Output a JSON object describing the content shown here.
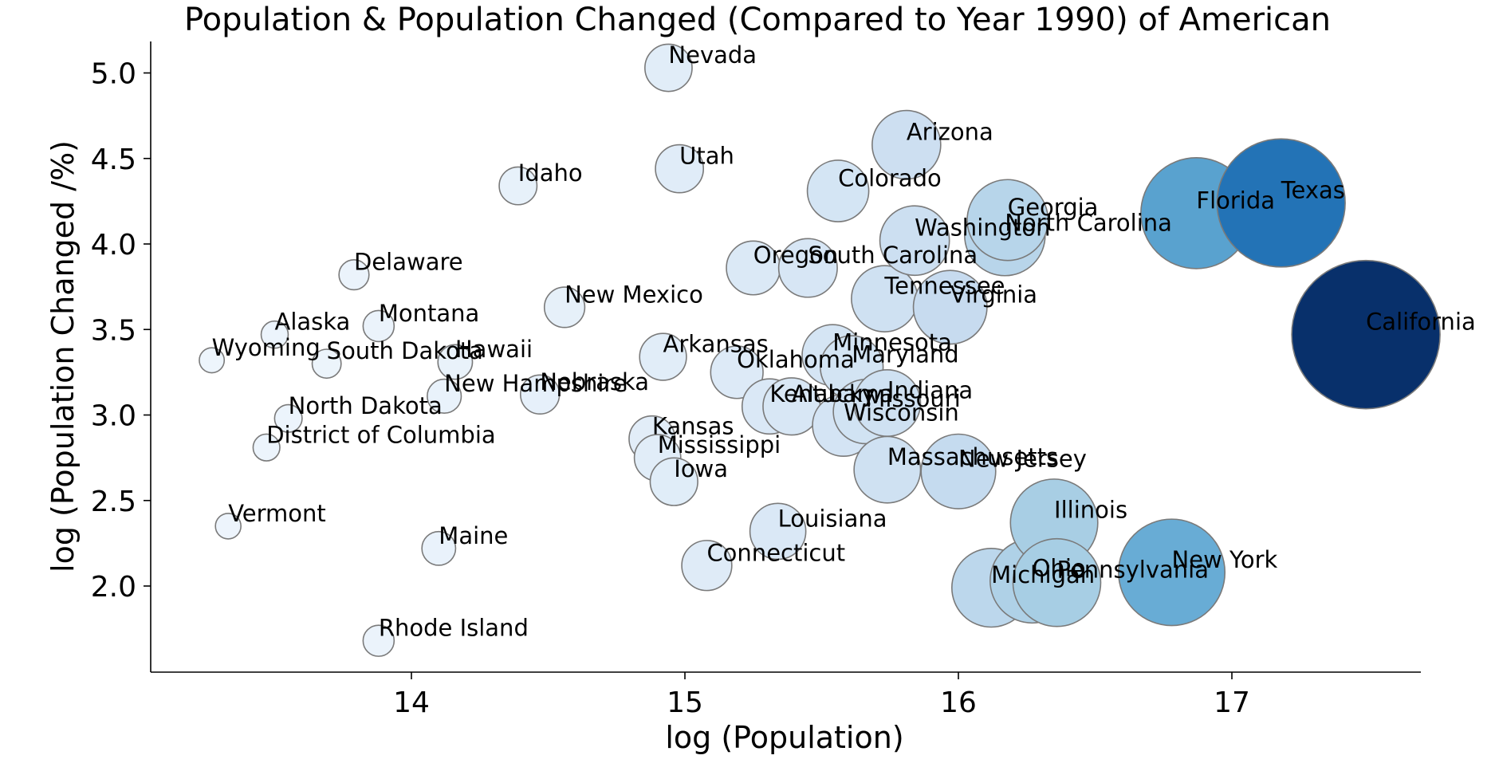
{
  "chart_data": {
    "type": "scatter",
    "title": "Population & Population Changed (Compared to Year 1990) of American",
    "xlabel": "log (Population)",
    "ylabel": "log (Population Changed /%)",
    "xlim": [
      13.05,
      17.7
    ],
    "ylim": [
      1.5,
      5.2
    ],
    "xticks": [
      14,
      15,
      16,
      17
    ],
    "yticks": [
      2.0,
      2.5,
      3.0,
      3.5,
      4.0,
      4.5,
      5.0
    ],
    "ytick_labels": [
      "2.0",
      "2.5",
      "3.0",
      "3.5",
      "4.0",
      "4.5",
      "5.0"
    ],
    "grid": false,
    "legend": "none",
    "color_scale": "Blues",
    "points": [
      {
        "label": "Nevada",
        "x": 14.94,
        "y": 5.03
      },
      {
        "label": "Arizona",
        "x": 15.81,
        "y": 4.58
      },
      {
        "label": "Utah",
        "x": 14.98,
        "y": 4.44
      },
      {
        "label": "Idaho",
        "x": 14.39,
        "y": 4.34
      },
      {
        "label": "Colorado",
        "x": 15.56,
        "y": 4.31
      },
      {
        "label": "Texas",
        "x": 17.18,
        "y": 4.24
      },
      {
        "label": "Florida",
        "x": 16.87,
        "y": 4.18
      },
      {
        "label": "Georgia",
        "x": 16.18,
        "y": 4.14
      },
      {
        "label": "North Carolina",
        "x": 16.17,
        "y": 4.05
      },
      {
        "label": "Washington",
        "x": 15.84,
        "y": 4.02
      },
      {
        "label": "Oregon",
        "x": 15.25,
        "y": 3.86
      },
      {
        "label": "South Carolina",
        "x": 15.45,
        "y": 3.86
      },
      {
        "label": "Delaware",
        "x": 13.79,
        "y": 3.82
      },
      {
        "label": "Tennessee",
        "x": 15.73,
        "y": 3.68
      },
      {
        "label": "New Mexico",
        "x": 14.56,
        "y": 3.63
      },
      {
        "label": "Virginia",
        "x": 15.97,
        "y": 3.63
      },
      {
        "label": "Montana",
        "x": 13.88,
        "y": 3.52
      },
      {
        "label": "Alaska",
        "x": 13.5,
        "y": 3.47
      },
      {
        "label": "California",
        "x": 17.49,
        "y": 3.47
      },
      {
        "label": "Minnesota",
        "x": 15.54,
        "y": 3.35
      },
      {
        "label": "Arkansas",
        "x": 14.92,
        "y": 3.34
      },
      {
        "label": "Wyoming",
        "x": 13.27,
        "y": 3.32
      },
      {
        "label": "South Dakota",
        "x": 13.69,
        "y": 3.3
      },
      {
        "label": "Hawaii",
        "x": 14.16,
        "y": 3.31
      },
      {
        "label": "Maryland",
        "x": 15.61,
        "y": 3.28
      },
      {
        "label": "Oklahoma",
        "x": 15.19,
        "y": 3.25
      },
      {
        "label": "New Hampshire",
        "x": 14.12,
        "y": 3.11
      },
      {
        "label": "Nebraska",
        "x": 14.47,
        "y": 3.12
      },
      {
        "label": "Indiana",
        "x": 15.74,
        "y": 3.07
      },
      {
        "label": "Kentucky",
        "x": 15.31,
        "y": 3.05
      },
      {
        "label": "Alabama",
        "x": 15.39,
        "y": 3.05
      },
      {
        "label": "Missouri",
        "x": 15.66,
        "y": 3.02
      },
      {
        "label": "Wisconsin",
        "x": 15.58,
        "y": 2.94
      },
      {
        "label": "North Dakota",
        "x": 13.55,
        "y": 2.98
      },
      {
        "label": "Kansas",
        "x": 14.88,
        "y": 2.86
      },
      {
        "label": "District of Columbia",
        "x": 13.47,
        "y": 2.81
      },
      {
        "label": "Mississippi",
        "x": 14.9,
        "y": 2.75
      },
      {
        "label": "Massachusetts",
        "x": 15.74,
        "y": 2.68
      },
      {
        "label": "New Jersey",
        "x": 16.0,
        "y": 2.67
      },
      {
        "label": "Iowa",
        "x": 14.96,
        "y": 2.61
      },
      {
        "label": "Illinois",
        "x": 16.35,
        "y": 2.37
      },
      {
        "label": "Vermont",
        "x": 13.33,
        "y": 2.35
      },
      {
        "label": "Louisiana",
        "x": 15.34,
        "y": 2.32
      },
      {
        "label": "Maine",
        "x": 14.1,
        "y": 2.22
      },
      {
        "label": "Connecticut",
        "x": 15.08,
        "y": 2.12
      },
      {
        "label": "New York",
        "x": 16.78,
        "y": 2.08
      },
      {
        "label": "Pennsylvania",
        "x": 16.36,
        "y": 2.02
      },
      {
        "label": "Ohio",
        "x": 16.27,
        "y": 2.03
      },
      {
        "label": "Michigan",
        "x": 16.12,
        "y": 1.99
      },
      {
        "label": "Rhode Island",
        "x": 13.88,
        "y": 1.68
      }
    ]
  }
}
